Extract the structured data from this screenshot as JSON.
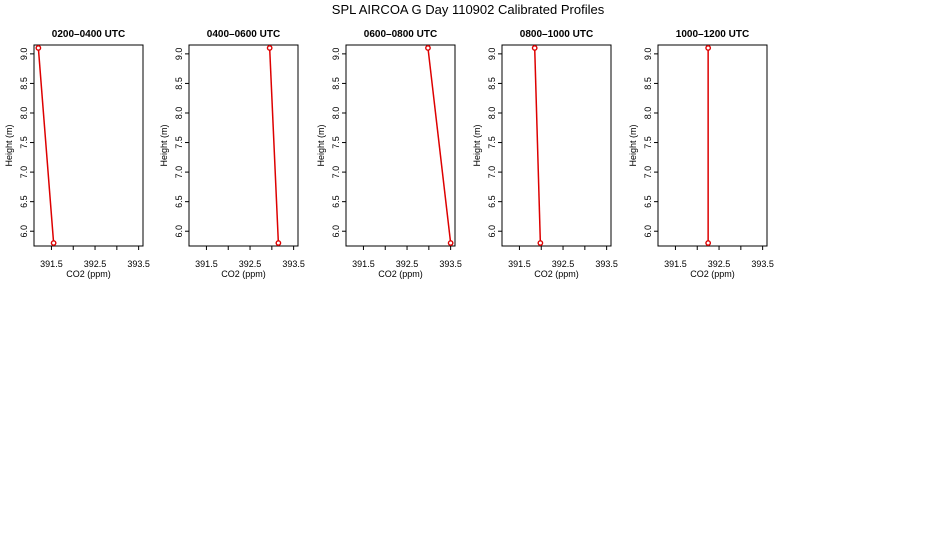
{
  "figure": {
    "title": "SPL AIRCOA G  Day 110902  Calibrated Profiles"
  },
  "chart_data": [
    {
      "type": "line",
      "title": "0200–0400 UTC",
      "xlabel": "CO2 (ppm)",
      "ylabel": "Height (m)",
      "xlim": [
        391.1,
        393.6
      ],
      "ylim": [
        5.75,
        9.15
      ],
      "xticks": [
        "391.5",
        "392.5",
        "393.5"
      ],
      "yticks": [
        "6.0",
        "6.5",
        "7.0",
        "7.5",
        "8.0",
        "8.5",
        "9.0"
      ],
      "series": [
        {
          "x": [
            391.55,
            391.2
          ],
          "y": [
            5.8,
            9.1
          ]
        }
      ],
      "color": "#dd0000"
    },
    {
      "type": "line",
      "title": "0400–0600 UTC",
      "xlabel": "CO2 (ppm)",
      "ylabel": "Height (m)",
      "xlim": [
        391.1,
        393.6
      ],
      "ylim": [
        5.75,
        9.15
      ],
      "xticks": [
        "391.5",
        "392.5",
        "393.5"
      ],
      "yticks": [
        "6.0",
        "6.5",
        "7.0",
        "7.5",
        "8.0",
        "8.5",
        "9.0"
      ],
      "series": [
        {
          "x": [
            393.15,
            392.95
          ],
          "y": [
            5.8,
            9.1
          ]
        }
      ],
      "color": "#dd0000"
    },
    {
      "type": "line",
      "title": "0600–0800 UTC",
      "xlabel": "CO2 (ppm)",
      "ylabel": "Height (m)",
      "xlim": [
        391.1,
        393.6
      ],
      "ylim": [
        5.75,
        9.15
      ],
      "xticks": [
        "391.5",
        "392.5",
        "393.5"
      ],
      "yticks": [
        "6.0",
        "6.5",
        "7.0",
        "7.5",
        "8.0",
        "8.5",
        "9.0"
      ],
      "series": [
        {
          "x": [
            393.5,
            392.98
          ],
          "y": [
            5.8,
            9.1
          ]
        }
      ],
      "color": "#dd0000"
    },
    {
      "type": "line",
      "title": "0800–1000 UTC",
      "xlabel": "CO2 (ppm)",
      "ylabel": "Height (m)",
      "xlim": [
        391.1,
        393.6
      ],
      "ylim": [
        5.75,
        9.15
      ],
      "xticks": [
        "391.5",
        "392.5",
        "393.5"
      ],
      "yticks": [
        "6.0",
        "6.5",
        "7.0",
        "7.5",
        "8.0",
        "8.5",
        "9.0"
      ],
      "series": [
        {
          "x": [
            391.98,
            391.85
          ],
          "y": [
            5.8,
            9.1
          ]
        }
      ],
      "color": "#dd0000"
    },
    {
      "type": "line",
      "title": "1000–1200 UTC",
      "xlabel": "CO2 (ppm)",
      "ylabel": "Height (m)",
      "xlim": [
        391.1,
        393.6
      ],
      "ylim": [
        5.75,
        9.15
      ],
      "xticks": [
        "391.5",
        "392.5",
        "393.5"
      ],
      "yticks": [
        "6.0",
        "6.5",
        "7.0",
        "7.5",
        "8.0",
        "8.5",
        "9.0"
      ],
      "series": [
        {
          "x": [
            392.25,
            392.25
          ],
          "y": [
            5.8,
            9.1
          ]
        }
      ],
      "color": "#dd0000"
    }
  ]
}
